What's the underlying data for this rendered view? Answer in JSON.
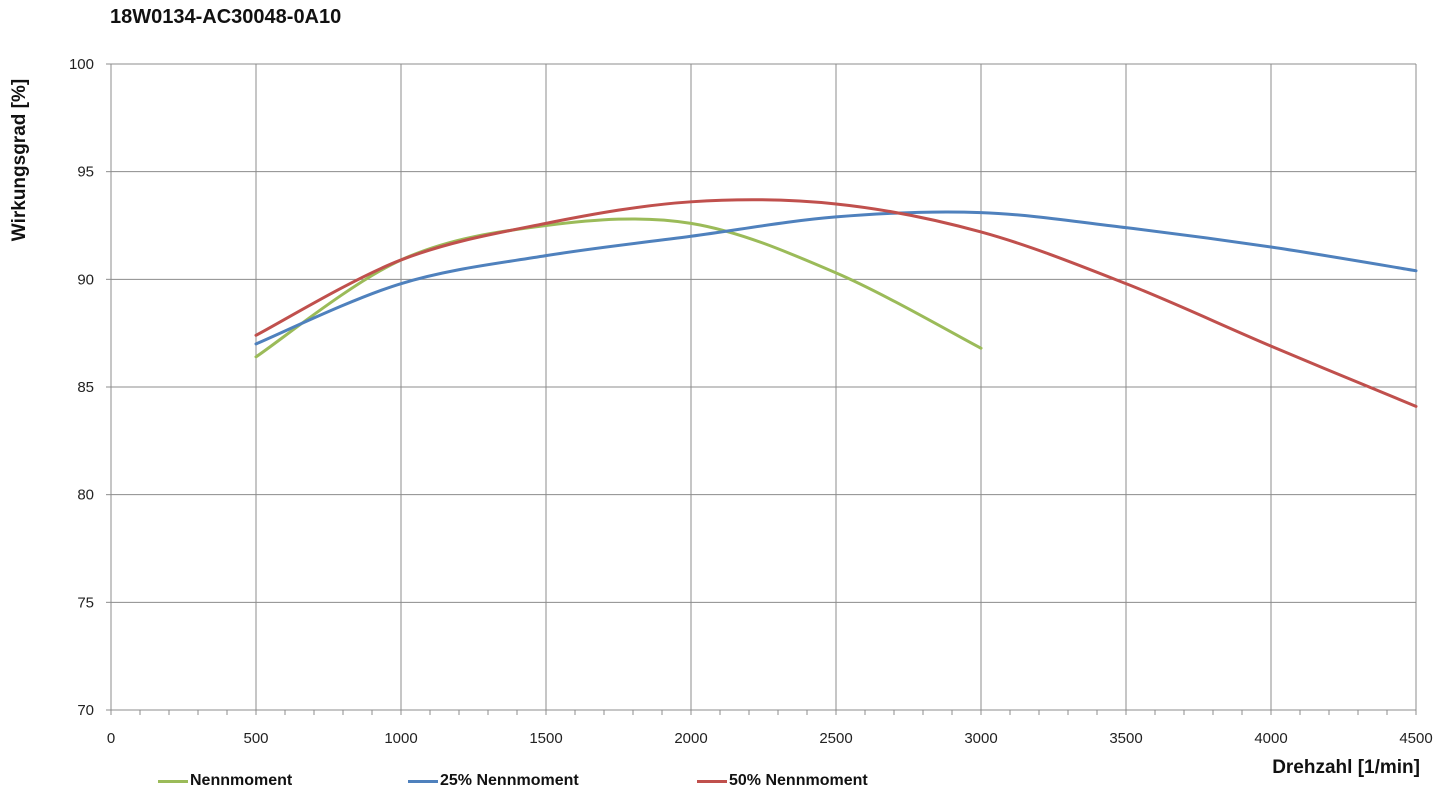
{
  "title": "18W0134-AC30048-0A10",
  "chart_data": {
    "type": "line",
    "title": "18W0134-AC30048-0A10",
    "xlabel": "Drehzahl [1/min]",
    "ylabel": "Wirkungsgrad [%]",
    "xlim": [
      0,
      4500
    ],
    "ylim": [
      70,
      100
    ],
    "x_ticks": [
      "0",
      "500",
      "1000",
      "1500",
      "2000",
      "2500",
      "3000",
      "3500",
      "4000",
      "4500"
    ],
    "y_ticks": [
      "70",
      "75",
      "80",
      "85",
      "90",
      "95",
      "100"
    ],
    "grid": true,
    "legend_position": "bottom",
    "series": [
      {
        "name": "Nennmoment",
        "color": "#9bbb59",
        "x": [
          500,
          1000,
          1500,
          2000,
          2500,
          3000
        ],
        "y": [
          86.4,
          90.9,
          92.5,
          92.6,
          90.3,
          86.8
        ]
      },
      {
        "name": "25% Nennmoment",
        "color": "#4f81bd",
        "x": [
          500,
          1000,
          1500,
          2000,
          2500,
          3000,
          3500,
          4000,
          4500
        ],
        "y": [
          87.0,
          89.8,
          91.1,
          92.0,
          92.9,
          93.1,
          92.4,
          91.5,
          90.4
        ]
      },
      {
        "name": "50% Nennmoment",
        "color": "#c0504d",
        "x": [
          500,
          1000,
          1500,
          2000,
          2500,
          3000,
          3500,
          4000,
          4500
        ],
        "y": [
          87.4,
          90.9,
          92.6,
          93.6,
          93.5,
          92.2,
          89.8,
          86.9,
          84.1
        ]
      }
    ]
  }
}
